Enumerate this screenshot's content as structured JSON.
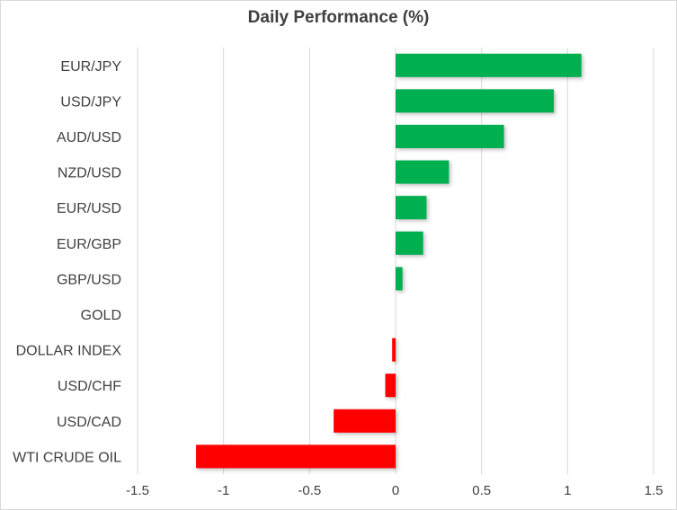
{
  "chart_data": {
    "type": "bar",
    "orientation": "horizontal",
    "title": "Daily Performance (%)",
    "categories": [
      "EUR/JPY",
      "USD/JPY",
      "AUD/USD",
      "NZD/USD",
      "EUR/USD",
      "EUR/GBP",
      "GBP/USD",
      "GOLD",
      "DOLLAR INDEX",
      "USD/CHF",
      "USD/CAD",
      "WTI CRUDE OIL"
    ],
    "values": [
      1.08,
      0.92,
      0.63,
      0.31,
      0.18,
      0.16,
      0.04,
      0.0,
      -0.02,
      -0.06,
      -0.36,
      -1.16
    ],
    "xlim": [
      -1.5,
      1.5
    ],
    "x_ticks": [
      -1.5,
      -1,
      -0.5,
      0,
      0.5,
      1,
      1.5
    ],
    "x_tick_labels": [
      "-1.5",
      "-1",
      "-0.5",
      "0",
      "0.5",
      "1",
      "1.5"
    ],
    "grid": "vertical",
    "colors": {
      "positive": "#00b050",
      "negative": "#ff0000",
      "grid": "#d9d9d9"
    }
  }
}
